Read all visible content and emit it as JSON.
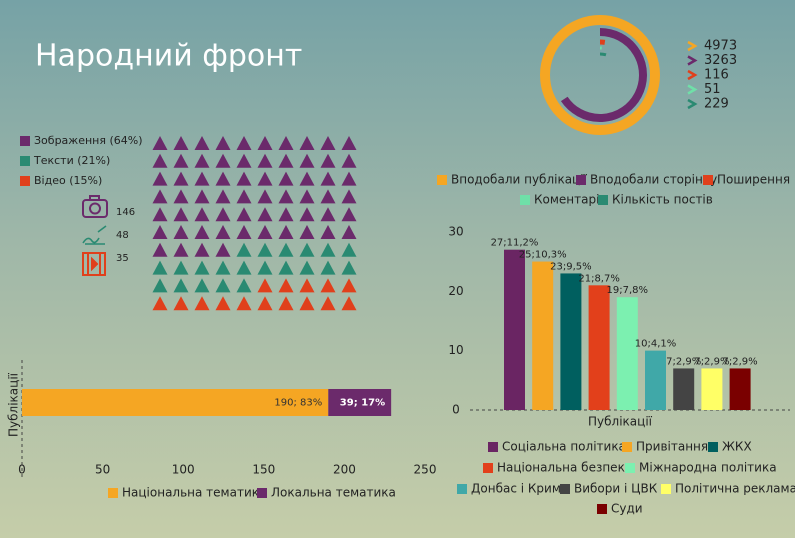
{
  "title": "Народний фронт",
  "chart_data": [
    {
      "type": "radial",
      "categories": [
        "Вподобали публікації",
        "Вподобали сторінку",
        "Поширення",
        "Коментарі",
        "Кількість постів"
      ],
      "values": [
        4973,
        3263,
        116,
        51,
        229
      ],
      "colors": [
        "#f5a623",
        "#6b2a6b",
        "#e0401c",
        "#6fe0a8",
        "#2a8a72"
      ]
    },
    {
      "type": "waffle",
      "categories": [
        "Зображення (64%)",
        "Тексти (21%)",
        "Відео (15%)"
      ],
      "values": [
        64,
        21,
        15
      ],
      "counts": [
        146,
        48,
        35
      ],
      "colors": [
        "#6b2a6b",
        "#2a8a72",
        "#e0401c"
      ]
    },
    {
      "type": "hbar",
      "stacked": true,
      "ylabel": "Публікації",
      "categories": [
        null
      ],
      "series": [
        {
          "name": "Національна тематика",
          "color": "#f5a623",
          "values": [
            190
          ],
          "value_labels": [
            "190; 83%"
          ]
        },
        {
          "name": "Локальна тематика",
          "color": "#6b2a6b",
          "values": [
            39
          ],
          "value_labels": [
            "39; 17%"
          ]
        }
      ],
      "xlim": [
        0,
        250
      ],
      "xticks": [
        0,
        50,
        100,
        150,
        200,
        250
      ]
    },
    {
      "type": "bar",
      "xlabel": "Публікації",
      "categories": [
        "Соціальна політика",
        "Привітання",
        "ЖКХ",
        "Національна безпека",
        "Міжнародна політика",
        "Донбас і Крим",
        "Вибори і ЦВК",
        "Політична реклама",
        "Суди"
      ],
      "values": [
        27,
        25,
        23,
        21,
        19,
        10,
        7,
        7,
        7
      ],
      "value_labels": [
        "27;11,2%",
        "25;10,3%",
        "23;9,5%",
        "21;8,7%",
        "19;7,8%",
        "10;4,1%",
        "7;2,9%",
        "7;2,9%",
        "7;2,9%"
      ],
      "colors": [
        "#6a2563",
        "#f5a623",
        "#005f5f",
        "#e2401b",
        "#7cf0b0",
        "#40a8a8",
        "#444444",
        "#ffff66",
        "#7a0000"
      ],
      "ylim": [
        0,
        32
      ],
      "yticks": [
        0,
        10,
        20,
        30
      ]
    }
  ]
}
